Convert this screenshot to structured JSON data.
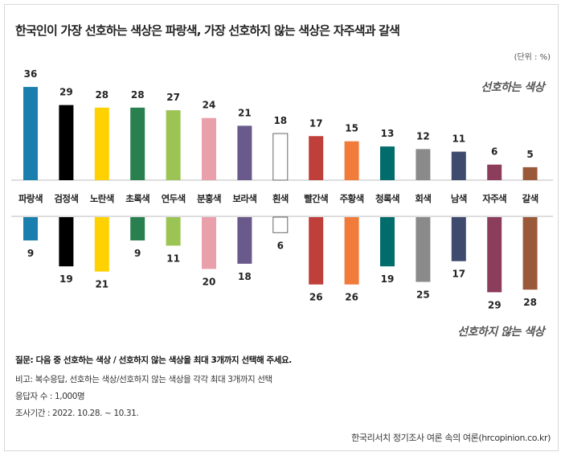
{
  "title": "한국인이 가장 선호하는 색상은 파랑색, 가장 선호하지 않는 색상은 자주색과 갈색",
  "unit": "(단위 : %)",
  "chart_data": {
    "type": "bar",
    "categories": [
      "파랑색",
      "검정색",
      "노란색",
      "초록색",
      "연두색",
      "분홍색",
      "보라색",
      "흰색",
      "빨간색",
      "주황색",
      "청록색",
      "회색",
      "남색",
      "자주색",
      "갈색"
    ],
    "colors": [
      "#1a7fae",
      "#000000",
      "#ffd100",
      "#2a7f4f",
      "#9bc455",
      "#e9a0aa",
      "#6a5a8c",
      "#ffffff",
      "#bf3f3a",
      "#f07b3a",
      "#006c6c",
      "#8a8a8a",
      "#3e4a6e",
      "#8d3d5c",
      "#9a5a3a"
    ],
    "series": [
      {
        "name": "선호하는 색상",
        "values": [
          36,
          29,
          28,
          28,
          27,
          24,
          21,
          18,
          17,
          15,
          13,
          12,
          11,
          6,
          5
        ]
      },
      {
        "name": "선호하지 않는 색상",
        "values": [
          9,
          19,
          21,
          9,
          11,
          20,
          18,
          6,
          26,
          26,
          19,
          25,
          17,
          29,
          28
        ]
      }
    ],
    "ylabel": "",
    "xlabel": "",
    "ylim": [
      0,
      36
    ],
    "grid": false
  },
  "notes": {
    "question": "질문: 다음 중 선호하는 색상 / 선호하지 않는 색상을 최대 3개까지 선택해 주세요.",
    "remark": "비고: 복수응답, 선호하는 색상/선호하지 않는 색상을 각각 최대 3개까지 선택",
    "respondents": "응답자 수 : 1,000명",
    "period": "조사기간 : 2022. 10.28. ~ 10.31."
  },
  "source": "한국리서치 정기조사 여론 속의 여론(hrcopinion.co.kr)"
}
